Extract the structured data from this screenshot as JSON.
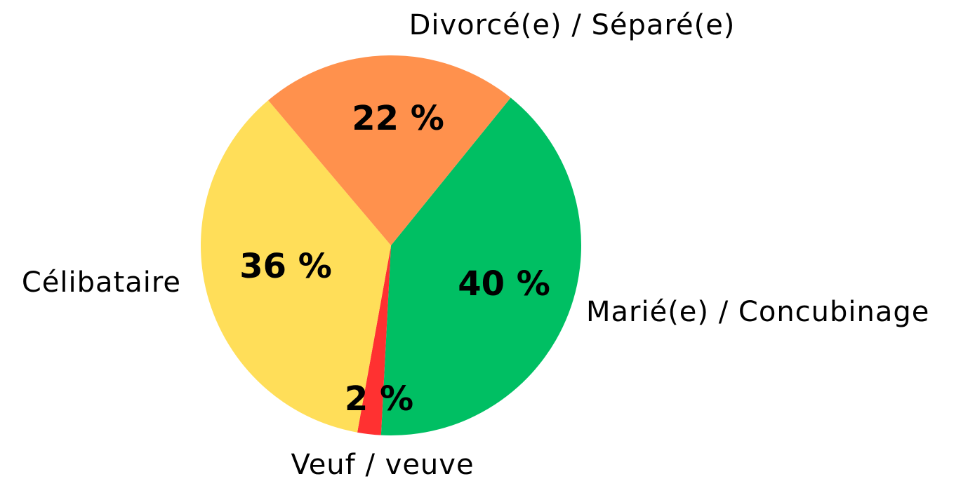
{
  "chart_data": {
    "type": "pie",
    "categories": [
      "Marié(e) / Concubinage",
      "Veuf / veuve",
      "Célibataire",
      "Divorcé(e) / Séparé(e)"
    ],
    "values": [
      40,
      2,
      36,
      22
    ],
    "value_labels": [
      "40 %",
      "2 %",
      "36 %",
      "22 %"
    ],
    "colors": [
      "#00bf63",
      "#ff3131",
      "#ffde59",
      "#ff914d"
    ]
  }
}
